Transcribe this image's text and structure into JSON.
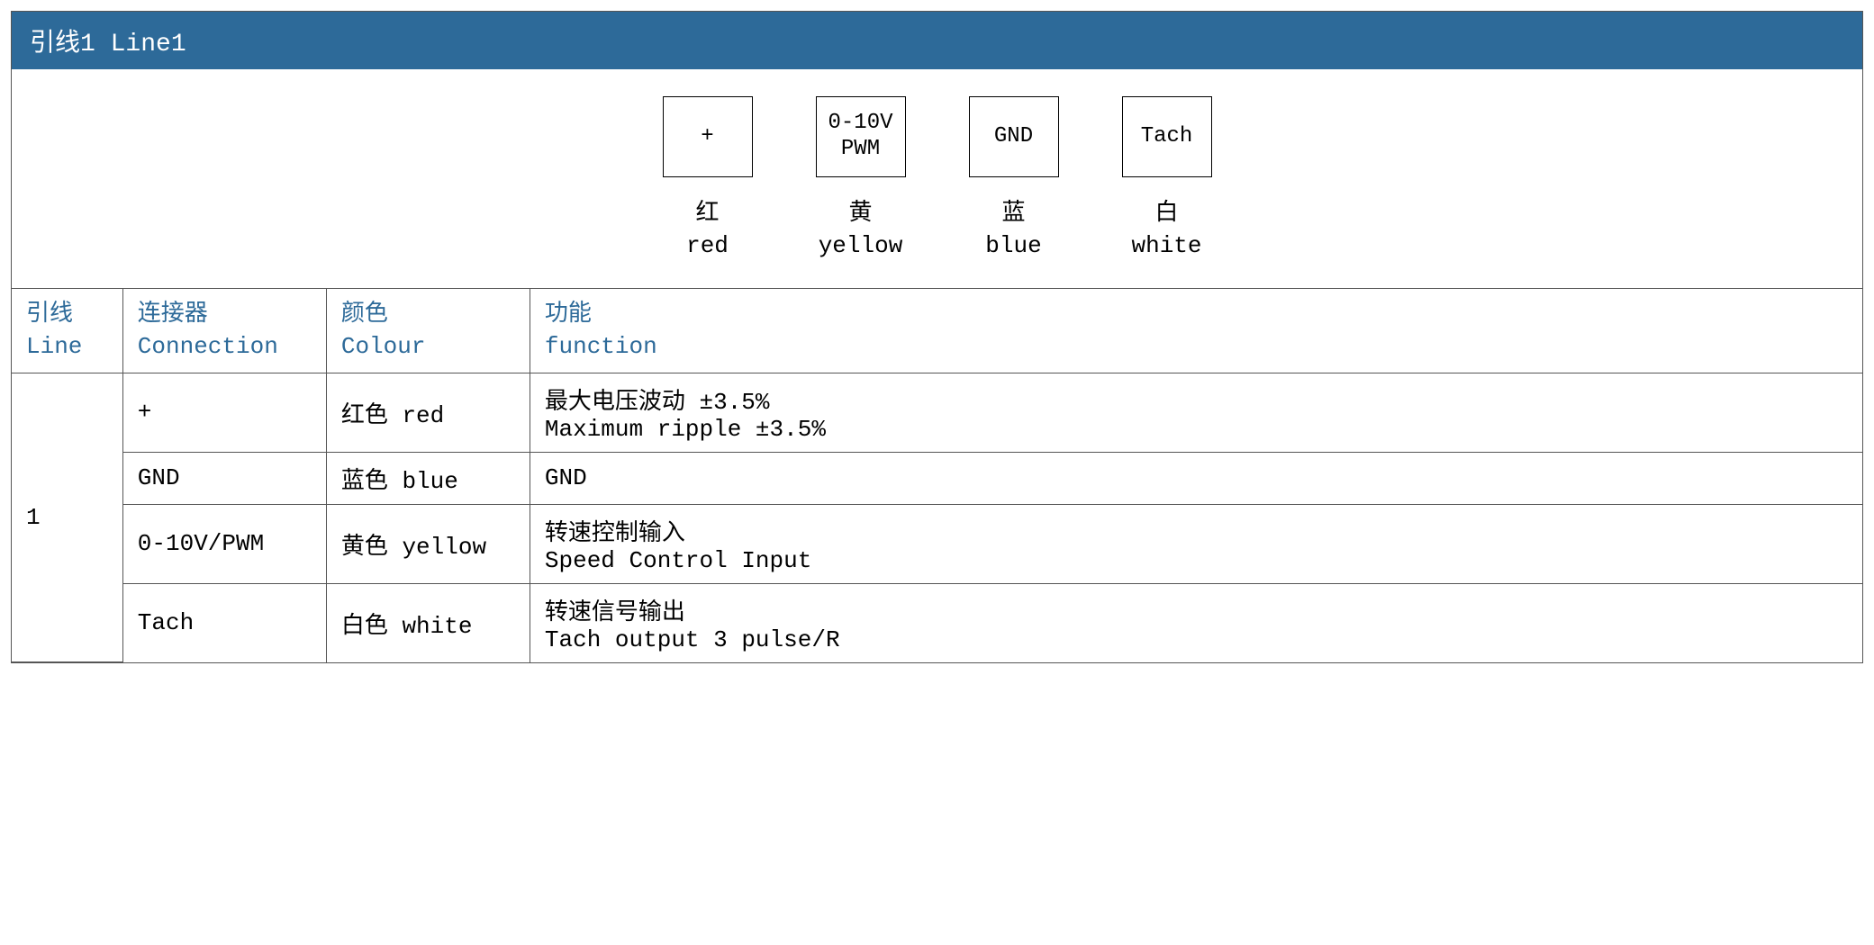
{
  "header": {
    "title": "引线1 Line1"
  },
  "colors": {
    "header_bg": "#2d6a99",
    "header_text": "#ffffff",
    "border": "#555555",
    "th_text": "#2d6a99",
    "body_bg": "#ffffff"
  },
  "pins": [
    {
      "box_line1": "+",
      "box_line2": "",
      "label_cn": "红",
      "label_en": "red"
    },
    {
      "box_line1": "0-10V",
      "box_line2": "PWM",
      "label_cn": "黄",
      "label_en": "yellow"
    },
    {
      "box_line1": "GND",
      "box_line2": "",
      "label_cn": "蓝",
      "label_en": "blue"
    },
    {
      "box_line1": "Tach",
      "box_line2": "",
      "label_cn": "白",
      "label_en": "white"
    }
  ],
  "table": {
    "headers": {
      "line": {
        "cn": "引线",
        "en": "Line"
      },
      "connection": {
        "cn": "连接器",
        "en": "Connection"
      },
      "colour": {
        "cn": "颜色",
        "en": "Colour"
      },
      "function": {
        "cn": "功能",
        "en": "function"
      }
    },
    "line_value": "1",
    "rows": [
      {
        "connection": "+",
        "colour": "红色 red",
        "func_cn": "最大电压波动 ±3.5%",
        "func_en": "Maximum ripple ±3.5%"
      },
      {
        "connection": "GND",
        "colour": "蓝色 blue",
        "func_cn": "",
        "func_en": "GND"
      },
      {
        "connection": "0-10V/PWM",
        "colour": "黄色 yellow",
        "func_cn": "转速控制输入",
        "func_en": "Speed Control Input"
      },
      {
        "connection": "Tach",
        "colour": "白色 white",
        "func_cn": "转速信号输出",
        "func_en": "Tach output 3 pulse/R"
      }
    ]
  }
}
